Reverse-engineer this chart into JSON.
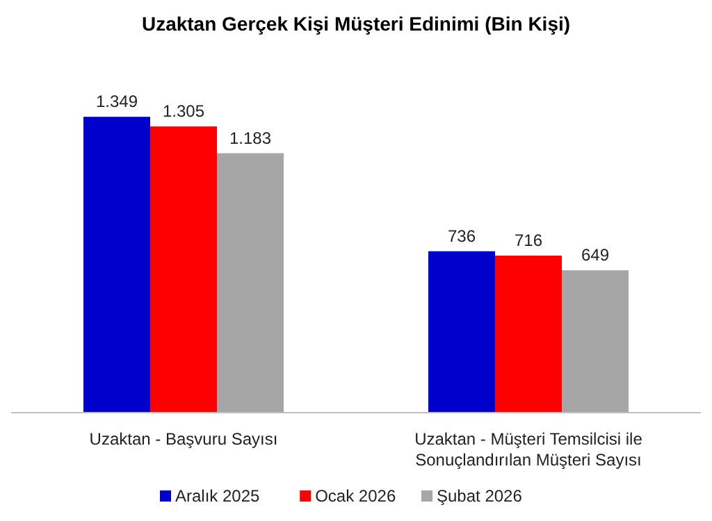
{
  "chart_data": {
    "type": "bar",
    "title": "Uzaktan Gerçek Kişi Müşteri Edinimi (Bin Kişi)",
    "categories": [
      "Uzaktan - Başvuru Sayısı",
      "Uzaktan - Müşteri Temsilcisi ile Sonuçlandırılan Müşteri Sayısı"
    ],
    "series": [
      {
        "name": "Aralık 2025",
        "color": "#0000cc",
        "values": [
          1349,
          736
        ],
        "value_labels": [
          "1.349",
          "736"
        ]
      },
      {
        "name": "Ocak 2026",
        "color": "#ff0000",
        "values": [
          1305,
          716
        ],
        "value_labels": [
          "1.305",
          "716"
        ]
      },
      {
        "name": "Şubat 2026",
        "color": "#a6a6a6",
        "values": [
          1183,
          649
        ],
        "value_labels": [
          "1.183",
          "649"
        ]
      }
    ],
    "legend": "bottom",
    "grid": false
  }
}
